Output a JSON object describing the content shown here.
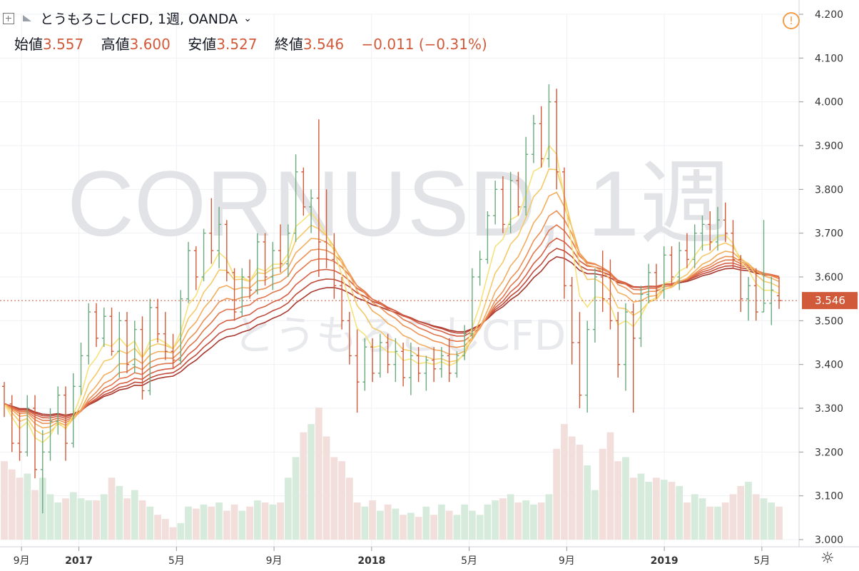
{
  "header": {
    "title": "とうもろこしCFD, 1週, OANDA",
    "open_label": "始値",
    "open": "3.557",
    "high_label": "高値",
    "high": "3.600",
    "low_label": "安値",
    "low": "3.527",
    "close_label": "終値",
    "close": "3.546",
    "change": "−0.011 (−0.31%)"
  },
  "watermark": {
    "symbol": "CORNUSD, 1週",
    "name": "とうもろこしCFD"
  },
  "icons": {
    "expand": "square-plus-icon",
    "flag": "flag-icon",
    "alert": "alert-icon",
    "settings": "gear-icon"
  },
  "colors": {
    "up": "#6aaa7e",
    "down": "#d15a3a",
    "last_price_bg": "#d15a3a",
    "grid": "#eef0f3"
  },
  "chart_data": {
    "type": "candlestick",
    "price_axis": {
      "ylim": [
        3.0,
        4.2
      ],
      "ticks": [
        "4.200",
        "4.100",
        "4.000",
        "3.900",
        "3.800",
        "3.700",
        "3.600",
        "3.500",
        "3.400",
        "3.300",
        "3.200",
        "3.100",
        "3.000"
      ]
    },
    "time_axis": {
      "labels": [
        "9月",
        "2017",
        "5月",
        "9月",
        "2018",
        "5月",
        "9月",
        "2019",
        "5月"
      ]
    },
    "last_price": "3.546",
    "ohlc": [
      [
        3.35,
        3.36,
        3.28,
        3.31
      ],
      [
        3.31,
        3.33,
        3.2,
        3.22
      ],
      [
        3.22,
        3.29,
        3.18,
        3.2
      ],
      [
        3.2,
        3.33,
        3.19,
        3.3
      ],
      [
        3.3,
        3.33,
        3.14,
        3.16
      ],
      [
        3.16,
        3.25,
        3.06,
        3.2
      ],
      [
        3.2,
        3.3,
        3.18,
        3.27
      ],
      [
        3.27,
        3.35,
        3.24,
        3.33
      ],
      [
        3.33,
        3.35,
        3.18,
        3.22
      ],
      [
        3.22,
        3.38,
        3.21,
        3.35
      ],
      [
        3.35,
        3.45,
        3.33,
        3.42
      ],
      [
        3.42,
        3.54,
        3.4,
        3.52
      ],
      [
        3.52,
        3.54,
        3.44,
        3.46
      ],
      [
        3.46,
        3.53,
        3.44,
        3.51
      ],
      [
        3.51,
        3.53,
        3.42,
        3.43
      ],
      [
        3.43,
        3.52,
        3.37,
        3.5
      ],
      [
        3.5,
        3.52,
        3.38,
        3.4
      ],
      [
        3.4,
        3.5,
        3.38,
        3.48
      ],
      [
        3.48,
        3.51,
        3.32,
        3.34
      ],
      [
        3.34,
        3.55,
        3.33,
        3.53
      ],
      [
        3.53,
        3.55,
        3.45,
        3.47
      ],
      [
        3.47,
        3.52,
        3.41,
        3.43
      ],
      [
        3.43,
        3.47,
        3.39,
        3.41
      ],
      [
        3.41,
        3.57,
        3.4,
        3.55
      ],
      [
        3.55,
        3.68,
        3.54,
        3.66
      ],
      [
        3.66,
        3.67,
        3.57,
        3.6
      ],
      [
        3.6,
        3.71,
        3.59,
        3.7
      ],
      [
        3.7,
        3.78,
        3.63,
        3.66
      ],
      [
        3.66,
        3.76,
        3.62,
        3.72
      ],
      [
        3.72,
        3.73,
        3.59,
        3.61
      ],
      [
        3.61,
        3.62,
        3.5,
        3.52
      ],
      [
        3.52,
        3.62,
        3.51,
        3.6
      ],
      [
        3.6,
        3.64,
        3.55,
        3.57
      ],
      [
        3.57,
        3.7,
        3.56,
        3.68
      ],
      [
        3.68,
        3.7,
        3.58,
        3.6
      ],
      [
        3.6,
        3.68,
        3.57,
        3.66
      ],
      [
        3.66,
        3.72,
        3.61,
        3.63
      ],
      [
        3.63,
        3.72,
        3.6,
        3.7
      ],
      [
        3.7,
        3.88,
        3.68,
        3.84
      ],
      [
        3.84,
        3.85,
        3.74,
        3.76
      ],
      [
        3.76,
        3.8,
        3.7,
        3.78
      ],
      [
        3.78,
        3.96,
        3.6,
        3.68
      ],
      [
        3.68,
        3.8,
        3.62,
        3.64
      ],
      [
        3.64,
        3.7,
        3.55,
        3.58
      ],
      [
        3.58,
        3.6,
        3.48,
        3.5
      ],
      [
        3.5,
        3.52,
        3.4,
        3.42
      ],
      [
        3.42,
        3.48,
        3.29,
        3.36
      ],
      [
        3.36,
        3.46,
        3.34,
        3.44
      ],
      [
        3.44,
        3.46,
        3.36,
        3.38
      ],
      [
        3.38,
        3.47,
        3.37,
        3.45
      ],
      [
        3.45,
        3.47,
        3.38,
        3.4
      ],
      [
        3.4,
        3.46,
        3.36,
        3.43
      ],
      [
        3.43,
        3.45,
        3.35,
        3.37
      ],
      [
        3.37,
        3.45,
        3.33,
        3.42
      ],
      [
        3.42,
        3.44,
        3.36,
        3.38
      ],
      [
        3.38,
        3.42,
        3.34,
        3.41
      ],
      [
        3.41,
        3.44,
        3.36,
        3.39
      ],
      [
        3.39,
        3.44,
        3.37,
        3.42
      ],
      [
        3.42,
        3.46,
        3.36,
        3.38
      ],
      [
        3.38,
        3.43,
        3.37,
        3.42
      ],
      [
        3.42,
        3.49,
        3.41,
        3.47
      ],
      [
        3.47,
        3.62,
        3.46,
        3.6
      ],
      [
        3.6,
        3.66,
        3.58,
        3.64
      ],
      [
        3.64,
        3.75,
        3.63,
        3.74
      ],
      [
        3.74,
        3.82,
        3.72,
        3.8
      ],
      [
        3.8,
        3.83,
        3.7,
        3.72
      ],
      [
        3.72,
        3.84,
        3.7,
        3.82
      ],
      [
        3.82,
        3.84,
        3.74,
        3.76
      ],
      [
        3.76,
        3.92,
        3.74,
        3.88
      ],
      [
        3.88,
        3.97,
        3.86,
        3.95
      ],
      [
        3.95,
        3.99,
        3.85,
        3.87
      ],
      [
        3.87,
        4.04,
        3.85,
        4.0
      ],
      [
        4.0,
        4.03,
        3.8,
        3.84
      ],
      [
        3.84,
        3.85,
        3.55,
        3.58
      ],
      [
        3.58,
        3.6,
        3.4,
        3.45
      ],
      [
        3.45,
        3.52,
        3.3,
        3.33
      ],
      [
        3.33,
        3.5,
        3.29,
        3.48
      ],
      [
        3.48,
        3.62,
        3.45,
        3.6
      ],
      [
        3.6,
        3.66,
        3.52,
        3.55
      ],
      [
        3.55,
        3.64,
        3.48,
        3.5
      ],
      [
        3.5,
        3.52,
        3.37,
        3.4
      ],
      [
        3.4,
        3.54,
        3.34,
        3.52
      ],
      [
        3.52,
        3.54,
        3.29,
        3.46
      ],
      [
        3.46,
        3.58,
        3.44,
        3.56
      ],
      [
        3.56,
        3.63,
        3.54,
        3.61
      ],
      [
        3.61,
        3.63,
        3.55,
        3.57
      ],
      [
        3.57,
        3.67,
        3.55,
        3.65
      ],
      [
        3.65,
        3.67,
        3.58,
        3.6
      ],
      [
        3.6,
        3.68,
        3.57,
        3.66
      ],
      [
        3.66,
        3.7,
        3.62,
        3.64
      ],
      [
        3.64,
        3.72,
        3.62,
        3.7
      ],
      [
        3.7,
        3.74,
        3.66,
        3.72
      ],
      [
        3.72,
        3.75,
        3.66,
        3.68
      ],
      [
        3.68,
        3.76,
        3.66,
        3.73
      ],
      [
        3.73,
        3.77,
        3.68,
        3.7
      ],
      [
        3.7,
        3.73,
        3.62,
        3.64
      ],
      [
        3.64,
        3.65,
        3.52,
        3.55
      ],
      [
        3.55,
        3.6,
        3.5,
        3.58
      ],
      [
        3.58,
        3.62,
        3.5,
        3.52
      ],
      [
        3.52,
        3.73,
        3.52,
        3.54
      ],
      [
        3.54,
        3.6,
        3.49,
        3.57
      ],
      [
        3.557,
        3.6,
        3.527,
        3.546
      ]
    ],
    "moving_averages": [
      {
        "period": 5,
        "color": "#f6e27a"
      },
      {
        "period": 8,
        "color": "#f5c96a"
      },
      {
        "period": 12,
        "color": "#f2ad5e"
      },
      {
        "period": 16,
        "color": "#ec9155"
      },
      {
        "period": 20,
        "color": "#e2764c"
      },
      {
        "period": 25,
        "color": "#d55f44"
      },
      {
        "period": 30,
        "color": "#c04a3a"
      },
      {
        "period": 35,
        "color": "#a8382f"
      }
    ],
    "volume": [
      190,
      170,
      150,
      160,
      120,
      150,
      110,
      90,
      100,
      115,
      100,
      95,
      95,
      110,
      150,
      130,
      100,
      120,
      95,
      80,
      60,
      50,
      30,
      40,
      80,
      75,
      85,
      80,
      90,
      70,
      85,
      70,
      80,
      95,
      90,
      85,
      90,
      150,
      200,
      260,
      280,
      320,
      250,
      200,
      190,
      150,
      90,
      80,
      95,
      70,
      85,
      75,
      60,
      65,
      55,
      80,
      60,
      85,
      70,
      60,
      85,
      70,
      60,
      85,
      95,
      100,
      110,
      90,
      95,
      85,
      90,
      110,
      220,
      280,
      250,
      230,
      180,
      120,
      220,
      260,
      190,
      200,
      150,
      160,
      140,
      150,
      145,
      140,
      130,
      90,
      110,
      100,
      80,
      80,
      90,
      110,
      130,
      140,
      110,
      100,
      90,
      80
    ]
  }
}
